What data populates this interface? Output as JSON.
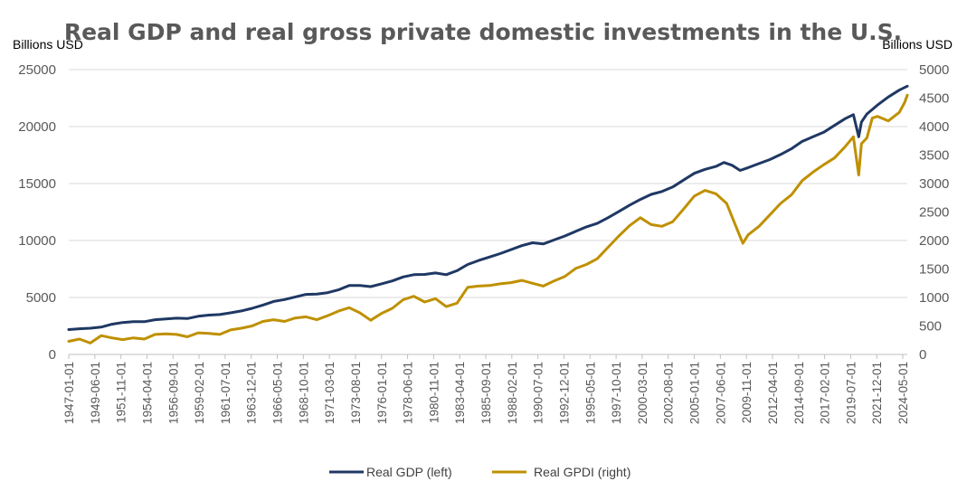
{
  "chart_data": {
    "type": "line",
    "title": "Real GDP and real gross private domestic investments in the U.S.",
    "left_axis_title": "Billions USD",
    "right_axis_title": "Billions USD",
    "y_left_ticks": [
      "0",
      "5000",
      "10000",
      "15000",
      "20000",
      "25000"
    ],
    "y_right_ticks": [
      "0",
      "500",
      "1000",
      "1500",
      "2000",
      "2500",
      "3000",
      "3500",
      "4000",
      "4500",
      "5000"
    ],
    "ylim_left": [
      0,
      25000
    ],
    "ylim_right": [
      0,
      5000
    ],
    "x_tick_labels": [
      "1947-01-01",
      "1949-06-01",
      "1951-11-01",
      "1954-04-01",
      "1956-09-01",
      "1959-02-01",
      "1961-07-01",
      "1963-12-01",
      "1966-05-01",
      "1968-10-01",
      "1971-03-01",
      "1973-08-01",
      "1976-01-01",
      "1978-06-01",
      "1980-11-01",
      "1983-04-01",
      "1985-09-01",
      "1988-02-01",
      "1990-07-01",
      "1992-12-01",
      "1995-05-01",
      "1997-10-01",
      "2000-03-01",
      "2002-08-01",
      "2005-01-01",
      "2007-06-01",
      "2009-11-01",
      "2012-04-01",
      "2014-09-01",
      "2017-02-01",
      "2019-07-01",
      "2021-12-01",
      "2024-05-01"
    ],
    "grid": "horizontal",
    "legend_position": "bottom",
    "colors": {
      "gdp": "#1f3864",
      "gpdi": "#bf9000",
      "grid": "#d9d9d9",
      "axis": "#bfbfbf"
    },
    "series": [
      {
        "name": "Real GDP (left)",
        "axis": "left",
        "color": "#1f3864",
        "x": [
          1947.0,
          1948.0,
          1949.0,
          1950.0,
          1951.0,
          1952.0,
          1953.0,
          1954.0,
          1955.0,
          1956.0,
          1957.0,
          1958.0,
          1959.0,
          1960.0,
          1961.0,
          1962.0,
          1963.0,
          1964.0,
          1965.0,
          1966.0,
          1967.0,
          1968.0,
          1969.0,
          1970.0,
          1971.0,
          1972.0,
          1973.0,
          1974.0,
          1975.0,
          1976.0,
          1977.0,
          1978.0,
          1979.0,
          1980.0,
          1981.0,
          1982.0,
          1983.0,
          1984.0,
          1985.0,
          1986.0,
          1987.0,
          1988.0,
          1989.0,
          1990.0,
          1991.0,
          1992.0,
          1993.0,
          1994.0,
          1995.0,
          1996.0,
          1997.0,
          1998.0,
          1999.0,
          2000.0,
          2001.0,
          2002.0,
          2003.0,
          2004.0,
          2005.0,
          2006.0,
          2007.0,
          2007.75,
          2008.5,
          2009.25,
          2010.0,
          2011.0,
          2012.0,
          2013.0,
          2014.0,
          2015.0,
          2016.0,
          2017.0,
          2018.0,
          2019.0,
          2019.75,
          2020.25,
          2020.5,
          2021.0,
          2022.0,
          2023.0,
          2024.0,
          2024.75
        ],
        "values": [
          2180,
          2250,
          2300,
          2400,
          2650,
          2800,
          2880,
          2870,
          3050,
          3120,
          3180,
          3150,
          3350,
          3450,
          3500,
          3650,
          3820,
          4050,
          4330,
          4650,
          4820,
          5050,
          5270,
          5300,
          5420,
          5670,
          6050,
          6050,
          5950,
          6200,
          6450,
          6800,
          7000,
          7020,
          7150,
          7000,
          7350,
          7900,
          8250,
          8550,
          8850,
          9200,
          9550,
          9800,
          9700,
          10050,
          10400,
          10800,
          11200,
          11500,
          12000,
          12550,
          13100,
          13600,
          14050,
          14300,
          14700,
          15300,
          15900,
          16250,
          16500,
          16850,
          16600,
          16150,
          16400,
          16750,
          17100,
          17550,
          18050,
          18700,
          19100,
          19500,
          20100,
          20700,
          21050,
          19100,
          20400,
          21100,
          21900,
          22600,
          23200,
          23550
        ]
      },
      {
        "name": "Real GPDI (right)",
        "axis": "right",
        "color": "#bf9000",
        "x": [
          1947.0,
          1948.0,
          1949.0,
          1950.0,
          1951.0,
          1952.0,
          1953.0,
          1954.0,
          1955.0,
          1956.0,
          1957.0,
          1958.0,
          1959.0,
          1960.0,
          1961.0,
          1962.0,
          1963.0,
          1964.0,
          1965.0,
          1966.0,
          1967.0,
          1968.0,
          1969.0,
          1970.0,
          1971.0,
          1972.0,
          1973.0,
          1974.0,
          1975.0,
          1976.0,
          1977.0,
          1978.0,
          1979.0,
          1980.0,
          1981.0,
          1982.0,
          1983.0,
          1984.0,
          1985.0,
          1986.0,
          1987.0,
          1988.0,
          1989.0,
          1990.0,
          1991.0,
          1992.0,
          1993.0,
          1994.0,
          1995.0,
          1996.0,
          1997.0,
          1998.0,
          1999.0,
          2000.0,
          2001.0,
          2002.0,
          2003.0,
          2004.0,
          2005.0,
          2006.0,
          2007.0,
          2008.0,
          2008.75,
          2009.5,
          2010.0,
          2011.0,
          2012.0,
          2013.0,
          2014.0,
          2015.0,
          2016.0,
          2017.0,
          2018.0,
          2019.0,
          2019.75,
          2020.25,
          2020.5,
          2021.0,
          2021.5,
          2022.0,
          2023.0,
          2024.0,
          2024.5,
          2024.75
        ],
        "values": [
          230,
          270,
          200,
          330,
          290,
          260,
          290,
          270,
          350,
          360,
          350,
          310,
          380,
          370,
          350,
          430,
          460,
          500,
          580,
          610,
          580,
          640,
          660,
          610,
          680,
          760,
          820,
          730,
          600,
          720,
          810,
          960,
          1020,
          920,
          980,
          840,
          900,
          1180,
          1200,
          1210,
          1240,
          1260,
          1300,
          1250,
          1200,
          1290,
          1370,
          1510,
          1580,
          1680,
          1880,
          2080,
          2260,
          2400,
          2280,
          2250,
          2330,
          2550,
          2780,
          2880,
          2820,
          2650,
          2300,
          1950,
          2100,
          2250,
          2450,
          2650,
          2800,
          3050,
          3200,
          3330,
          3450,
          3650,
          3820,
          3150,
          3700,
          3800,
          4150,
          4180,
          4100,
          4250,
          4420,
          4550
        ]
      }
    ]
  }
}
